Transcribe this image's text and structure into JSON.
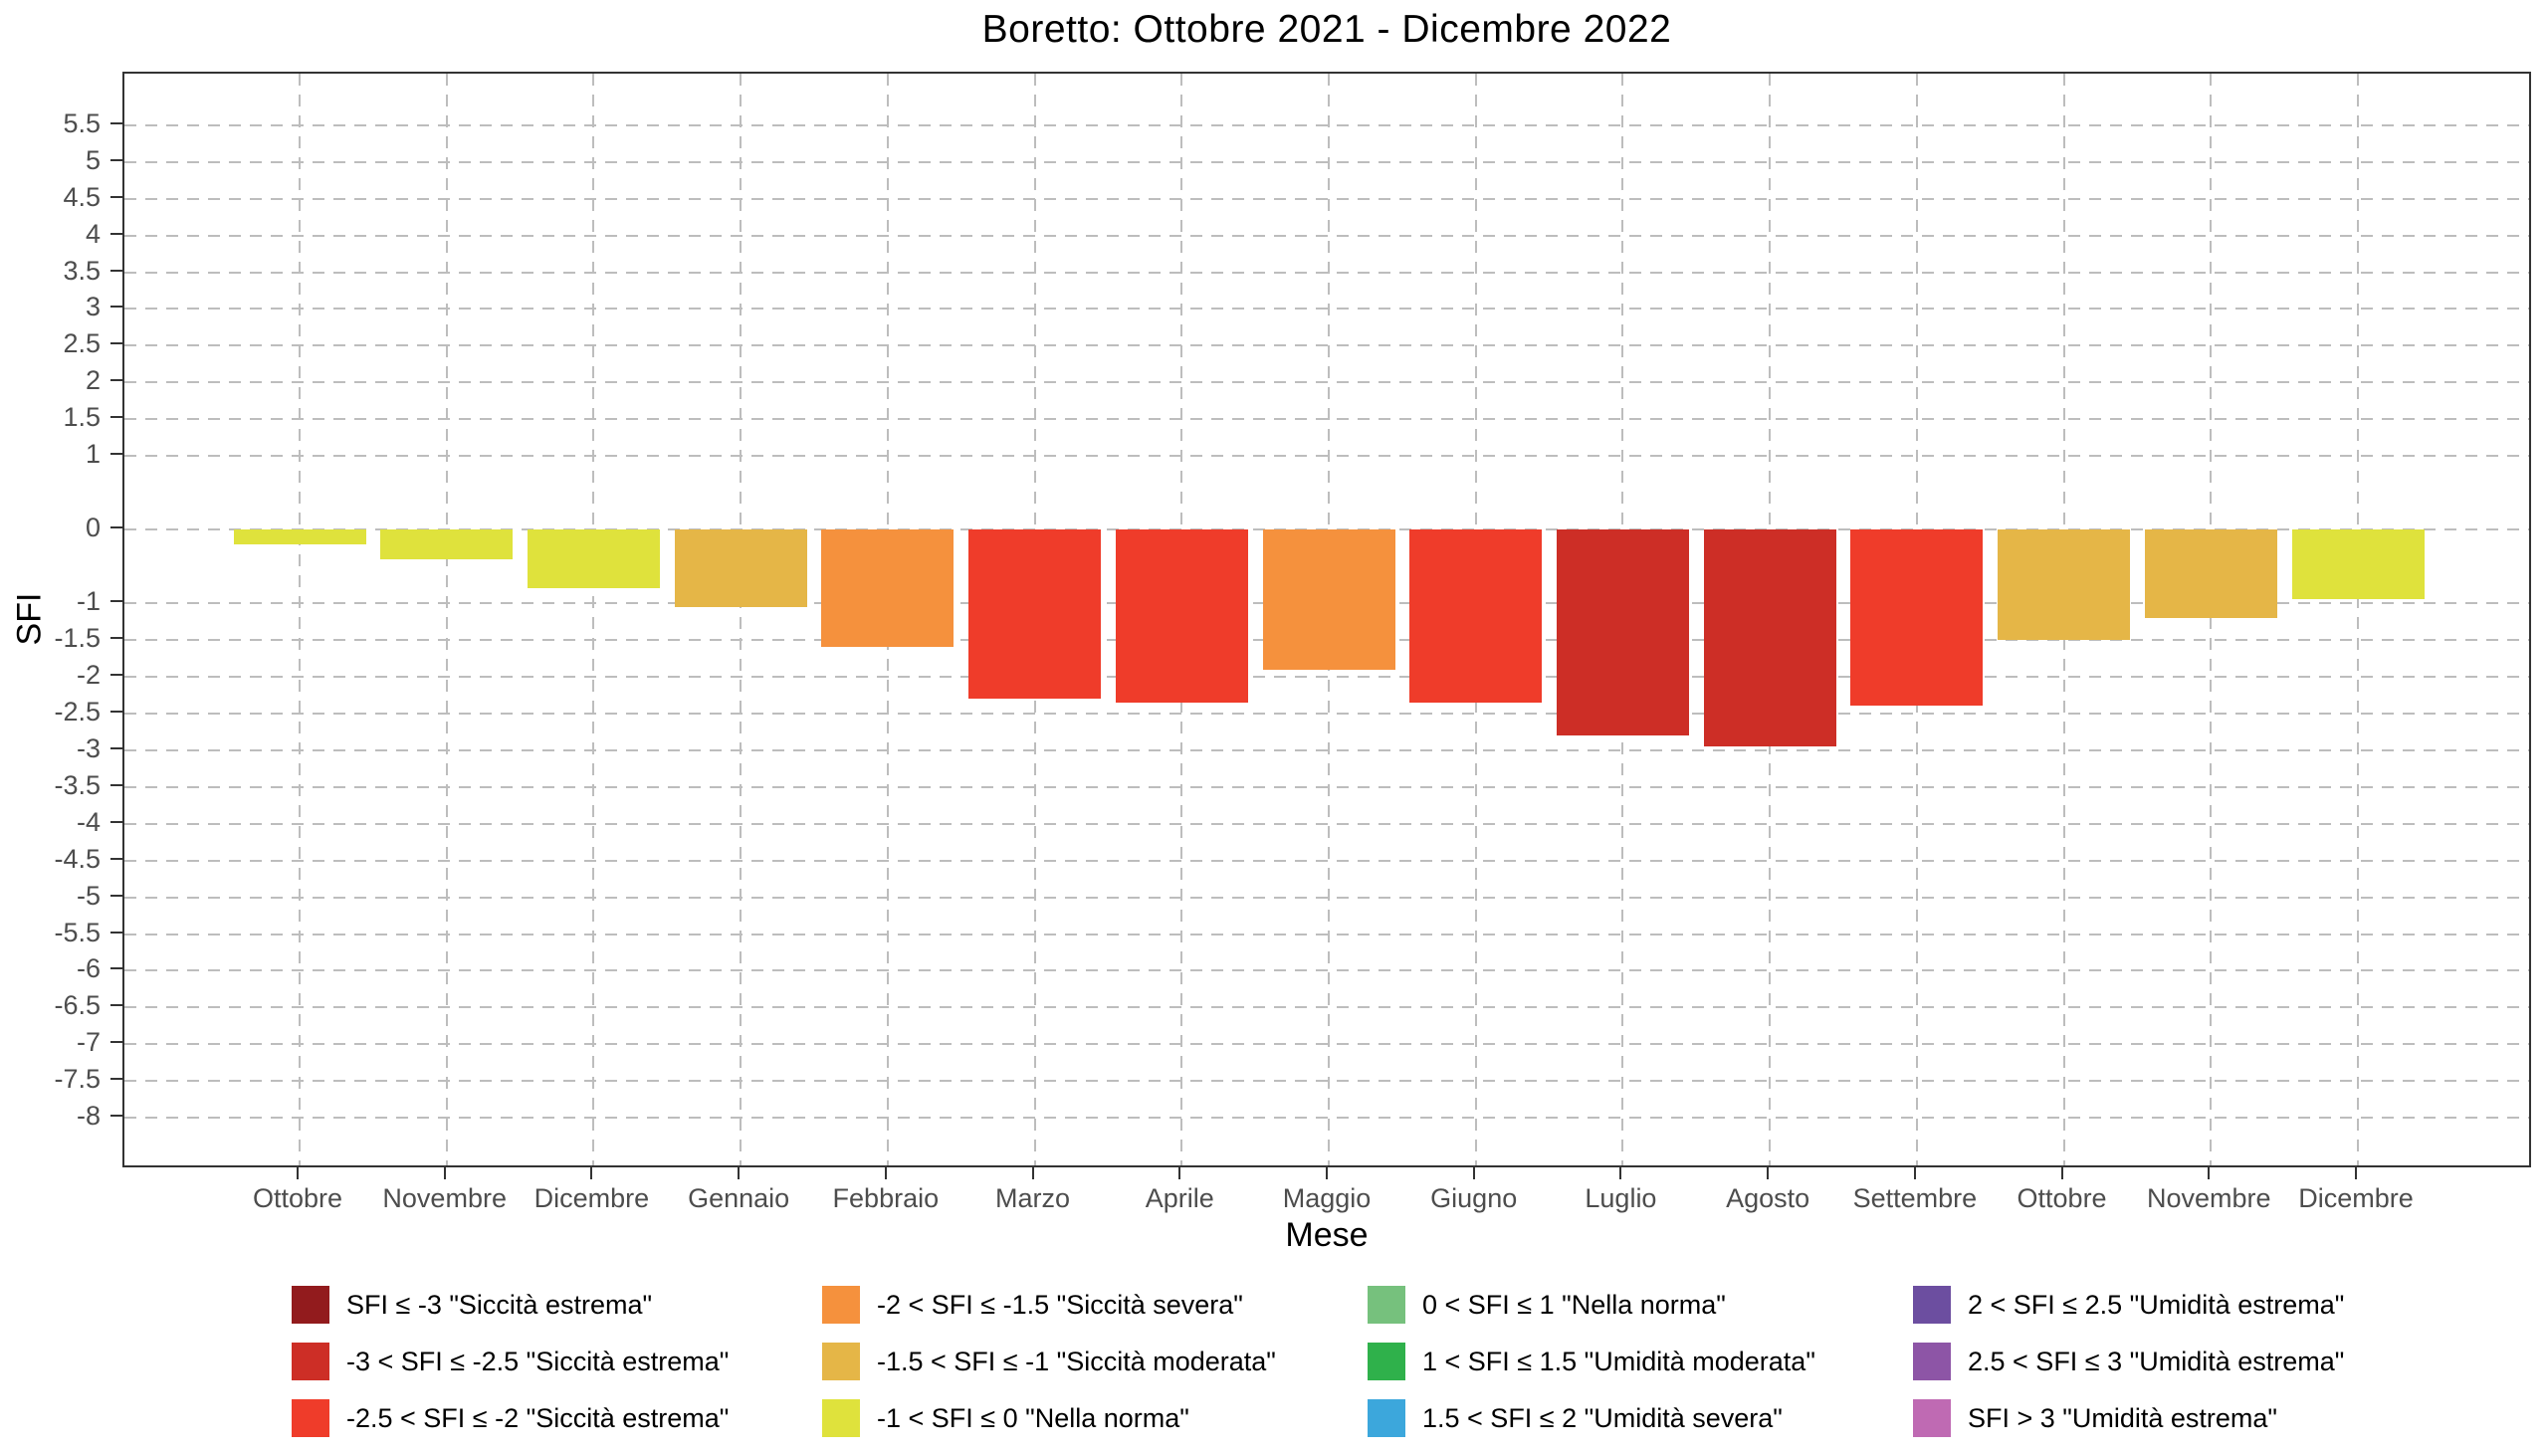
{
  "chart_data": {
    "type": "bar",
    "title": "Boretto: Ottobre 2021 - Dicembre 2022",
    "xlabel": "Mese",
    "ylabel": "SFI",
    "categories": [
      "Ottobre",
      "Novembre",
      "Dicembre",
      "Gennaio",
      "Febbraio",
      "Marzo",
      "Aprile",
      "Maggio",
      "Giugno",
      "Luglio",
      "Agosto",
      "Settembre",
      "Ottobre",
      "Novembre",
      "Dicembre"
    ],
    "values": [
      -0.2,
      -0.4,
      -0.8,
      -1.05,
      -1.6,
      -2.3,
      -2.35,
      -1.9,
      -2.35,
      -2.8,
      -2.95,
      -2.4,
      -1.5,
      -1.2,
      -0.95
    ],
    "bar_colors": [
      "#dfe23c",
      "#dfe23c",
      "#dfe23c",
      "#e5b647",
      "#f5913d",
      "#ef3c2a",
      "#ef3c2a",
      "#f5913d",
      "#ef3c2a",
      "#cd2e26",
      "#cd2e26",
      "#ef3c2a",
      "#e5b647",
      "#e5b647",
      "#dfe23c"
    ],
    "ylim": [
      -8.7,
      6.2
    ],
    "y_ticks": [
      5.5,
      5,
      4.5,
      4,
      3.5,
      3,
      2.5,
      2,
      1.5,
      1,
      0,
      -1,
      -1.5,
      -2,
      -2.5,
      -3,
      -3.5,
      -4,
      -4.5,
      -5,
      -5.5,
      -6,
      -6.5,
      -7,
      -7.5,
      -8
    ],
    "grid": true,
    "legend_position": "bottom",
    "legend": [
      {
        "label": "SFI ≤ -3 \"Siccità estrema\"",
        "color": "#921b1d"
      },
      {
        "label": "-3 < SFI ≤ -2.5 \"Siccità estrema\"",
        "color": "#cd2e26"
      },
      {
        "label": "-2.5 < SFI ≤ -2 \"Siccità estrema\"",
        "color": "#ef3c2a"
      },
      {
        "label": "-2 < SFI ≤ -1.5 \"Siccità severa\"",
        "color": "#f5913d"
      },
      {
        "label": "-1.5 < SFI ≤ -1 \"Siccità moderata\"",
        "color": "#e5b647"
      },
      {
        "label": "-1 < SFI ≤ 0 \"Nella norma\"",
        "color": "#dfe23c"
      },
      {
        "label": "0 < SFI ≤ 1 \"Nella norma\"",
        "color": "#76c17d"
      },
      {
        "label": "1 < SFI ≤ 1.5 \"Umidità moderata\"",
        "color": "#2fb14b"
      },
      {
        "label": "1.5 < SFI ≤ 2 \"Umidità severa\"",
        "color": "#3ca7dc"
      },
      {
        "label": "2 < SFI ≤ 2.5 \"Umidità estrema\"",
        "color": "#6c4ea0"
      },
      {
        "label": "2.5 < SFI ≤ 3 \"Umidità estrema\"",
        "color": "#8d55a6"
      },
      {
        "label": "SFI > 3 \"Umidità estrema\"",
        "color": "#bf6ab3"
      }
    ],
    "colors": {
      "grid": "#bdbdbd",
      "axis_text": "#4d4d4d",
      "panel_border": "#333333",
      "text": "#000000"
    }
  }
}
